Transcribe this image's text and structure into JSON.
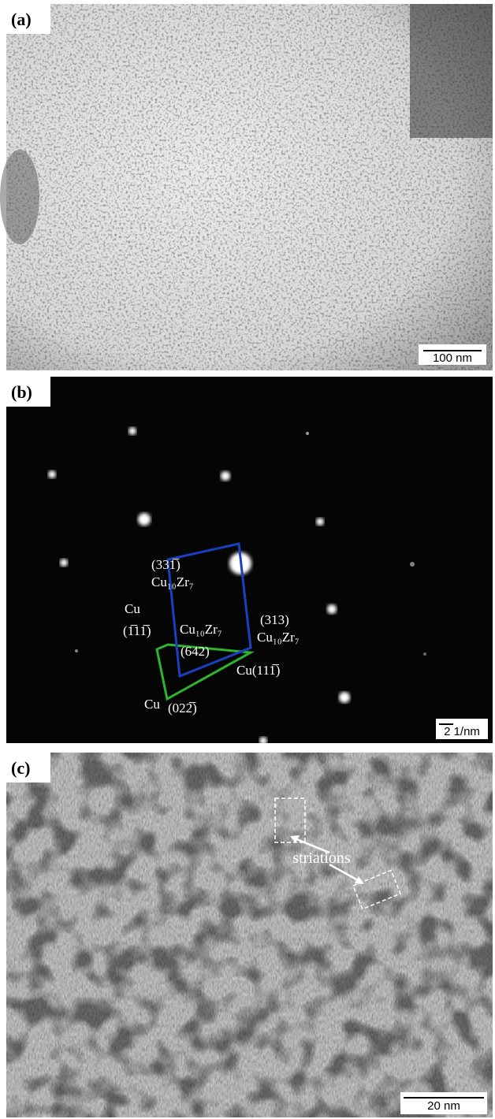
{
  "panels": [
    {
      "label": "(a)",
      "scale_bar": "100 nm"
    },
    {
      "label": "(b)",
      "scale_bar": "2 1/nm",
      "annotations": [
        "(331̅)",
        "Cu₁₀Zr₇",
        "Cu",
        "(1̅11̅)",
        "Cu₁₀Zr₇",
        "(642)",
        "(313)",
        "Cu₁₀Zr₇",
        "Cu(111̅)",
        "Cu",
        "(022̅)"
      ]
    },
    {
      "label": "(c)",
      "scale_bar": "20 nm",
      "annotations": [
        "striations"
      ]
    }
  ]
}
